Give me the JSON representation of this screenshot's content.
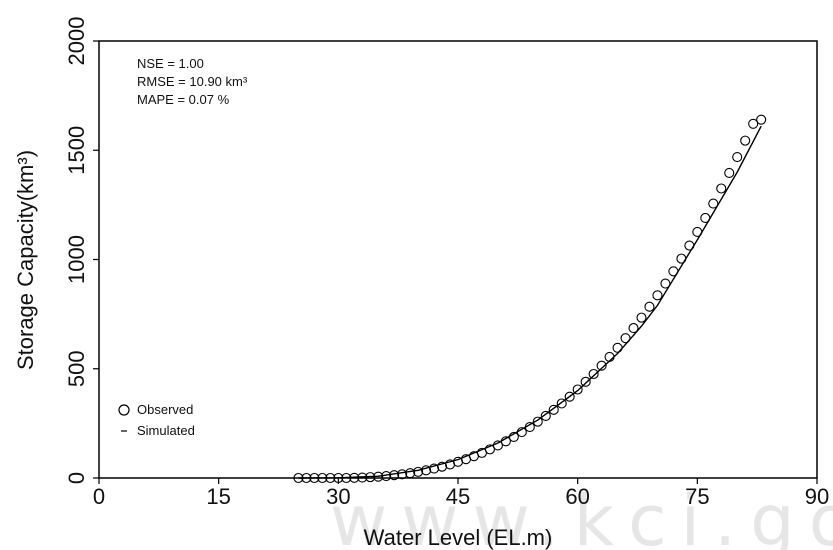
{
  "chart_data": {
    "type": "scatter",
    "xlabel": "Water Level (EL.m)",
    "ylabel": "Storage Capacity(km³)",
    "xlim": [
      0,
      90
    ],
    "ylim": [
      0,
      2000
    ],
    "xticks": [
      0,
      15,
      30,
      45,
      60,
      75,
      90
    ],
    "yticks": [
      0,
      500,
      1000,
      1500,
      2000
    ],
    "grid": false,
    "legend_placement": "bottom-left",
    "annotations": [
      "NSE = 1.00",
      "RMSE = 10.90 km³",
      "MAPE = 0.07 %"
    ],
    "series": [
      {
        "name": "Observed",
        "marker": "open-circle",
        "x": [
          25,
          26,
          27,
          28,
          29,
          30,
          31,
          32,
          33,
          34,
          35,
          36,
          37,
          38,
          39,
          40,
          41,
          42,
          43,
          44,
          45,
          46,
          47,
          48,
          49,
          50,
          51,
          52,
          53,
          54,
          55,
          56,
          57,
          58,
          59,
          60,
          61,
          62,
          63,
          64,
          65,
          66,
          67,
          68,
          69,
          70,
          71,
          72,
          73,
          74,
          75,
          76,
          77,
          78,
          79,
          80,
          81,
          82,
          83
        ],
        "y": [
          0,
          0,
          0,
          0,
          0,
          0,
          0,
          1,
          2,
          4,
          6,
          9,
          13,
          17,
          22,
          28,
          35,
          43,
          52,
          62,
          74,
          86,
          100,
          115,
          131,
          149,
          168,
          188,
          210,
          233,
          258,
          284,
          312,
          341,
          372,
          405,
          440,
          476,
          514,
          554,
          596,
          640,
          686,
          734,
          784,
          836,
          890,
          946,
          1004,
          1064,
          1126,
          1190,
          1256,
          1325,
          1396,
          1469,
          1544,
          1621,
          1640
        ]
      },
      {
        "name": "Simulated",
        "marker": "line",
        "x": [
          25,
          30,
          35,
          40,
          45,
          50,
          55,
          60,
          65,
          68,
          70,
          75,
          80,
          83
        ],
        "y": [
          0,
          1,
          8,
          35,
          84,
          160,
          265,
          400,
          570,
          695,
          790,
          1090,
          1400,
          1610
        ]
      }
    ]
  },
  "watermark": "www.kci.go.kr"
}
